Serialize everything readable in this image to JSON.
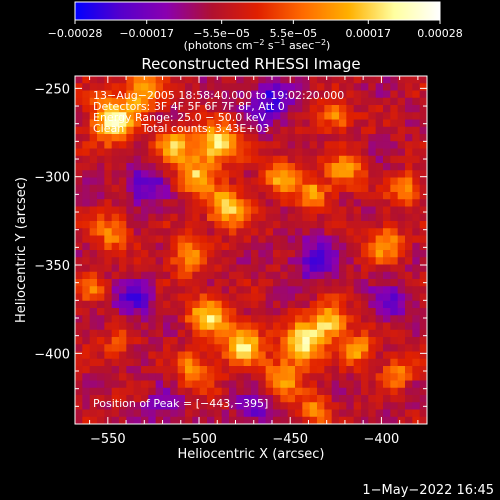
{
  "chart_data": {
    "type": "heatmap",
    "title": "Reconstructed RHESSI Image",
    "xlabel": "Heliocentric X (arcsec)",
    "ylabel": "Heliocentric Y (arcsec)",
    "xlim": [
      -568,
      -375
    ],
    "ylim": [
      -440,
      -243
    ],
    "x_ticks": [
      -550,
      -500,
      -450,
      -400
    ],
    "y_ticks": [
      -250,
      -300,
      -350,
      -400
    ],
    "x_tick_labels": [
      "−550",
      "−500",
      "−450",
      "−400"
    ],
    "y_tick_labels": [
      "−250",
      "−300",
      "−350",
      "−400"
    ],
    "grid": false,
    "colorbar": {
      "min": -0.00028,
      "max": 0.00028,
      "ticks": [
        -0.00028,
        -0.00017,
        -5.5e-05,
        5.5e-05,
        0.00017,
        0.00028
      ],
      "tick_labels": [
        "−0.00028",
        "−0.00017",
        "−5.5e−05",
        "5.5e−05",
        "0.00017",
        "0.00028"
      ],
      "unit_parts": [
        "(photons cm",
        "−2",
        " s",
        "−1",
        " asec",
        "−2",
        ")"
      ],
      "colors": [
        "#0000ff",
        "#5500cc",
        "#8a00b0",
        "#b01030",
        "#e02000",
        "#ff6a00",
        "#ffb000",
        "#ffffa0",
        "#ffffff"
      ]
    },
    "annotations": {
      "lines": [
        "13−Aug−2005 18:58:40.000 to 19:02:20.000",
        "Detectors: 3F 4F 5F 6F 7F 8F, Att 0",
        "Energy Range: 25.0 − 50.0 keV",
        "Clean     Total counts: 3.43E+03"
      ],
      "peak_label": "Position of Peak = [−443,−395]"
    },
    "peak": [
      -443,
      -395
    ],
    "map": {
      "grid_size": [
        48,
        48
      ],
      "hotspots": [
        {
          "x": -547,
          "y": -268,
          "value": 0.00027,
          "r": 9
        },
        {
          "x": -531,
          "y": -251,
          "value": 0.00022,
          "r": 7
        },
        {
          "x": -514,
          "y": -282,
          "value": 0.0002,
          "r": 7
        },
        {
          "x": -490,
          "y": -282,
          "value": 0.00026,
          "r": 8
        },
        {
          "x": -503,
          "y": -300,
          "value": 0.00021,
          "r": 7
        },
        {
          "x": -485,
          "y": -318,
          "value": 0.00023,
          "r": 8
        },
        {
          "x": -455,
          "y": -300,
          "value": 0.0002,
          "r": 7
        },
        {
          "x": -437,
          "y": -310,
          "value": 0.00018,
          "r": 6
        },
        {
          "x": -425,
          "y": -266,
          "value": 0.00017,
          "r": 6
        },
        {
          "x": -420,
          "y": -297,
          "value": 0.00018,
          "r": 7
        },
        {
          "x": -386,
          "y": -308,
          "value": 0.0002,
          "r": 6
        },
        {
          "x": -398,
          "y": -338,
          "value": 0.00018,
          "r": 7
        },
        {
          "x": -507,
          "y": -345,
          "value": 0.00017,
          "r": 7
        },
        {
          "x": -495,
          "y": -378,
          "value": 0.00022,
          "r": 8
        },
        {
          "x": -476,
          "y": -395,
          "value": 0.00024,
          "r": 8
        },
        {
          "x": -503,
          "y": -410,
          "value": 0.00018,
          "r": 7
        },
        {
          "x": -443,
          "y": -395,
          "value": 0.00028,
          "r": 8
        },
        {
          "x": -428,
          "y": -382,
          "value": 0.00024,
          "r": 7
        },
        {
          "x": -413,
          "y": -398,
          "value": 0.0002,
          "r": 6
        },
        {
          "x": -455,
          "y": -415,
          "value": 0.00019,
          "r": 7
        },
        {
          "x": -437,
          "y": -432,
          "value": 0.00017,
          "r": 6
        },
        {
          "x": -548,
          "y": -331,
          "value": 0.00016,
          "r": 7
        },
        {
          "x": -560,
          "y": -362,
          "value": 0.00012,
          "r": 6
        },
        {
          "x": -545,
          "y": -395,
          "value": 0.0001,
          "r": 6
        },
        {
          "x": -392,
          "y": -412,
          "value": 0.00015,
          "r": 6
        },
        {
          "x": -530,
          "y": -305,
          "value": -0.00015,
          "r": 8
        },
        {
          "x": -462,
          "y": -257,
          "value": -0.00017,
          "r": 9
        },
        {
          "x": -437,
          "y": -347,
          "value": -0.00016,
          "r": 8
        },
        {
          "x": -535,
          "y": -370,
          "value": -0.00014,
          "r": 8
        },
        {
          "x": -395,
          "y": -372,
          "value": -0.00013,
          "r": 7
        },
        {
          "x": -470,
          "y": -432,
          "value": -0.00012,
          "r": 7
        },
        {
          "x": -520,
          "y": -430,
          "value": -0.0001,
          "r": 7
        }
      ]
    }
  },
  "footer": {
    "date_stamp": "1−May−2022 16:45"
  }
}
